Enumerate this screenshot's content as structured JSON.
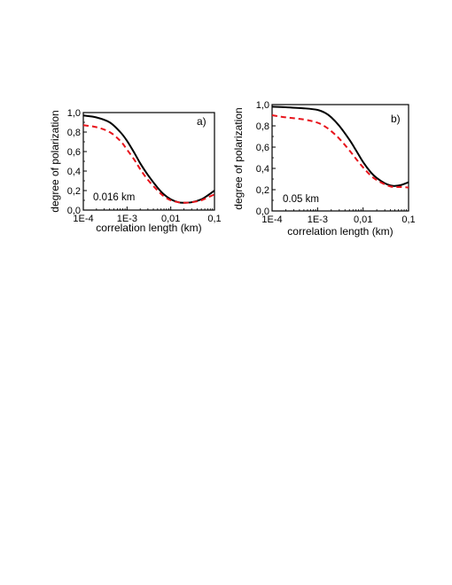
{
  "chart_data": [
    {
      "type": "line",
      "panel_label": "a)",
      "annotation": "0.016 km",
      "xlabel": "correlation length (km)",
      "ylabel": "degree of polarization",
      "xscale": "log",
      "xlim": [
        0.0001,
        0.1
      ],
      "ylim": [
        0.0,
        1.0
      ],
      "xticks": [
        {
          "value": 0.0001,
          "label": "1E-4"
        },
        {
          "value": 0.001,
          "label": "1E-3"
        },
        {
          "value": 0.01,
          "label": "0,01"
        },
        {
          "value": 0.1,
          "label": "0,1"
        }
      ],
      "yticks": [
        {
          "value": 0.0,
          "label": "0,0"
        },
        {
          "value": 0.2,
          "label": "0,2"
        },
        {
          "value": 0.4,
          "label": "0,4"
        },
        {
          "value": 0.6,
          "label": "0,6"
        },
        {
          "value": 0.8,
          "label": "0,8"
        },
        {
          "value": 1.0,
          "label": "1,0"
        }
      ],
      "grid": false,
      "series": [
        {
          "style": "solid",
          "color": "#000000",
          "x": [
            0.0001,
            0.0002,
            0.0004,
            0.0007,
            0.001,
            0.0015,
            0.002,
            0.003,
            0.005,
            0.007,
            0.01,
            0.015,
            0.02,
            0.03,
            0.05,
            0.07,
            0.1
          ],
          "y": [
            0.97,
            0.95,
            0.9,
            0.8,
            0.71,
            0.58,
            0.48,
            0.36,
            0.23,
            0.16,
            0.11,
            0.08,
            0.075,
            0.08,
            0.11,
            0.15,
            0.2
          ]
        },
        {
          "style": "dashed",
          "color": "#e8141c",
          "x": [
            0.0001,
            0.0002,
            0.0004,
            0.0007,
            0.001,
            0.0015,
            0.002,
            0.003,
            0.005,
            0.007,
            0.01,
            0.015,
            0.02,
            0.03,
            0.05,
            0.07,
            0.1
          ],
          "y": [
            0.87,
            0.85,
            0.8,
            0.71,
            0.62,
            0.51,
            0.42,
            0.31,
            0.2,
            0.14,
            0.1,
            0.08,
            0.075,
            0.08,
            0.1,
            0.13,
            0.16
          ]
        }
      ]
    },
    {
      "type": "line",
      "panel_label": "b)",
      "annotation": "0.05 km",
      "xlabel": "correlation length (km)",
      "ylabel": "degree of polarization",
      "xscale": "log",
      "xlim": [
        0.0001,
        0.1
      ],
      "ylim": [
        0.0,
        1.0
      ],
      "xticks": [
        {
          "value": 0.0001,
          "label": "1E-4"
        },
        {
          "value": 0.001,
          "label": "1E-3"
        },
        {
          "value": 0.01,
          "label": "0,01"
        },
        {
          "value": 0.1,
          "label": "0,1"
        }
      ],
      "yticks": [
        {
          "value": 0.0,
          "label": "0,0"
        },
        {
          "value": 0.2,
          "label": "0,2"
        },
        {
          "value": 0.4,
          "label": "0,4"
        },
        {
          "value": 0.6,
          "label": "0,6"
        },
        {
          "value": 0.8,
          "label": "0,8"
        },
        {
          "value": 1.0,
          "label": "1,0"
        }
      ],
      "grid": false,
      "series": [
        {
          "style": "solid",
          "color": "#000000",
          "x": [
            0.0001,
            0.0002,
            0.0005,
            0.001,
            0.0015,
            0.002,
            0.003,
            0.005,
            0.007,
            0.01,
            0.015,
            0.02,
            0.03,
            0.04,
            0.05,
            0.07,
            0.1
          ],
          "y": [
            0.98,
            0.975,
            0.965,
            0.95,
            0.92,
            0.88,
            0.8,
            0.67,
            0.57,
            0.46,
            0.36,
            0.31,
            0.26,
            0.24,
            0.235,
            0.245,
            0.27
          ]
        },
        {
          "style": "dashed",
          "color": "#e8141c",
          "x": [
            0.0001,
            0.0002,
            0.0005,
            0.001,
            0.0015,
            0.002,
            0.003,
            0.005,
            0.007,
            0.01,
            0.015,
            0.02,
            0.03,
            0.04,
            0.05,
            0.07,
            0.1
          ],
          "y": [
            0.9,
            0.88,
            0.86,
            0.83,
            0.79,
            0.75,
            0.68,
            0.57,
            0.49,
            0.41,
            0.33,
            0.29,
            0.25,
            0.23,
            0.225,
            0.225,
            0.22
          ]
        }
      ]
    }
  ]
}
